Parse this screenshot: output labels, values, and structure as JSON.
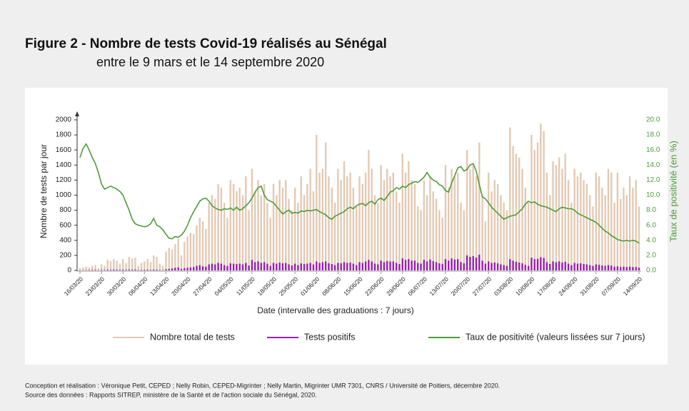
{
  "chart_data": {
    "type": "bar",
    "title": "Figure 2 - Nombre de tests Covid-19 réalisés au Sénégal",
    "subtitle": "entre le 9 mars et le 14 septembre 2020",
    "x_label": "Date (intervalle des graduations : 7 jours)",
    "y_label": "Nombre de tests par jour",
    "y2_label": "Taux de positivité (en %)",
    "notes": [
      "Conception et réalisation : Véronique Petit, CEPED ; Nelly Robin, CEPED-Migrinter ; Nelly Martin,  Migrinter UMR 7301, CNRS / Université de Poitiers, décembre 2020.",
      "Source des données : Rapports SITREP, ministère de la Santé et de l'action sociale du Sénégal, 2020."
    ],
    "ylim": [
      0,
      2000
    ],
    "yticks": [
      0,
      200,
      400,
      600,
      800,
      1000,
      1200,
      1400,
      1600,
      1800,
      2000
    ],
    "y2lim": [
      0,
      20
    ],
    "y2ticks": [
      {
        "value": 0,
        "label": "0.0"
      },
      {
        "value": 2,
        "label": "2.0"
      },
      {
        "value": 4,
        "label": "4.0"
      },
      {
        "value": 6,
        "label": "6.0"
      },
      {
        "value": 8,
        "label": "8.0"
      },
      {
        "value": 10,
        "label": "10.0"
      },
      {
        "value": 12,
        "label": "12.0"
      },
      {
        "value": 14,
        "label": "14.0"
      },
      {
        "value": 16,
        "label": "16.0"
      },
      {
        "value": 18,
        "label": "18.0"
      },
      {
        "value": 20,
        "label": "20.0"
      }
    ],
    "legend": "bottom",
    "categories": [
      "16/03/20",
      null,
      null,
      null,
      null,
      null,
      null,
      "23/03/20",
      null,
      null,
      null,
      null,
      null,
      null,
      "30/03/20",
      null,
      null,
      null,
      null,
      null,
      null,
      "06/04/20",
      null,
      null,
      null,
      null,
      null,
      null,
      "13/04/20",
      null,
      null,
      null,
      null,
      null,
      null,
      "20/04/20",
      null,
      null,
      null,
      null,
      null,
      null,
      "27/04/20",
      null,
      null,
      null,
      null,
      null,
      null,
      "04/05/20",
      null,
      null,
      null,
      null,
      null,
      null,
      "11/05/20",
      null,
      null,
      null,
      null,
      null,
      null,
      "18/05/20",
      null,
      null,
      null,
      null,
      null,
      null,
      "25/05/20",
      null,
      null,
      null,
      null,
      null,
      null,
      "01/06/20",
      null,
      null,
      null,
      null,
      null,
      null,
      "08/06/20",
      null,
      null,
      null,
      null,
      null,
      null,
      "15/06/20",
      null,
      null,
      null,
      null,
      null,
      null,
      "22/06/20",
      null,
      null,
      null,
      null,
      null,
      null,
      "29/06/20",
      null,
      null,
      null,
      null,
      null,
      null,
      "06/07/20",
      null,
      null,
      null,
      null,
      null,
      null,
      "13/07/20",
      null,
      null,
      null,
      null,
      null,
      null,
      "20/07/20",
      null,
      null,
      null,
      null,
      null,
      null,
      "27/07/20",
      null,
      null,
      null,
      null,
      null,
      null,
      "03/08/20",
      null,
      null,
      null,
      null,
      null,
      null,
      "10/08/20",
      null,
      null,
      null,
      null,
      null,
      null,
      "17/08/20",
      null,
      null,
      null,
      null,
      null,
      null,
      "24/08/20",
      null,
      null,
      null,
      null,
      null,
      null,
      "31/08/20",
      null,
      null,
      null,
      null,
      null,
      null,
      "07/09/20",
      null,
      null,
      null,
      null,
      null,
      null,
      "14/09/20"
    ],
    "series": [
      {
        "name": "Nombre total de tests",
        "type": "bar",
        "color": "#e3c9b3",
        "values": [
          30,
          40,
          50,
          40,
          60,
          70,
          30,
          80,
          60,
          140,
          120,
          150,
          130,
          90,
          150,
          100,
          180,
          160,
          170,
          60,
          100,
          120,
          150,
          110,
          200,
          180,
          90,
          60,
          250,
          300,
          280,
          350,
          420,
          200,
          380,
          450,
          500,
          480,
          600,
          700,
          650,
          550,
          900,
          1000,
          950,
          1150,
          1100,
          900,
          700,
          1200,
          1150,
          1050,
          1100,
          1000,
          1250,
          800,
          1350,
          1050,
          1200,
          1000,
          1150,
          900,
          700,
          1150,
          1000,
          1200,
          1100,
          1200,
          950,
          800,
          1100,
          900,
          1250,
          1000,
          1150,
          1350,
          1050,
          1800,
          1300,
          1350,
          1700,
          1250,
          1100,
          900,
          1350,
          1200,
          1450,
          1250,
          1300,
          1100,
          850,
          1250,
          1150,
          1300,
          1600,
          1350,
          1000,
          900,
          1400,
          1200,
          1350,
          1250,
          1300,
          1050,
          900,
          1550,
          1300,
          1450,
          1200,
          1150,
          850,
          800,
          1200,
          1000,
          1250,
          1050,
          950,
          800,
          700,
          1400,
          1100,
          1350,
          1250,
          1300,
          900,
          800,
          1600,
          1350,
          1400,
          1250,
          1700,
          1000,
          650,
          1300,
          1050,
          1200,
          1150,
          1000,
          900,
          800,
          1900,
          1650,
          1550,
          1500,
          1350,
          1100,
          900,
          1800,
          1600,
          1700,
          1950,
          1850,
          1300,
          1000,
          1450,
          1400,
          1500,
          1350,
          1550,
          1200,
          900,
          1350,
          1250,
          1300,
          1200,
          1150,
          1000,
          850,
          1300,
          1250,
          1100,
          1000,
          1350,
          1300,
          900,
          1300,
          950,
          1100,
          1000,
          1250,
          1100,
          1200,
          850
        ]
      },
      {
        "name": "Tests positifs",
        "type": "bar",
        "color": "#9a1fb0",
        "values": [
          3,
          4,
          5,
          5,
          6,
          8,
          3,
          8,
          6,
          10,
          9,
          12,
          10,
          8,
          10,
          8,
          12,
          10,
          12,
          5,
          8,
          8,
          10,
          7,
          12,
          10,
          6,
          5,
          15,
          20,
          25,
          35,
          40,
          20,
          30,
          35,
          40,
          45,
          60,
          70,
          55,
          50,
          80,
          90,
          80,
          100,
          90,
          70,
          60,
          95,
          90,
          85,
          90,
          80,
          100,
          65,
          140,
          110,
          120,
          100,
          110,
          90,
          60,
          100,
          90,
          105,
          95,
          100,
          80,
          65,
          90,
          70,
          95,
          85,
          90,
          100,
          80,
          120,
          100,
          110,
          120,
          95,
          85,
          70,
          100,
          95,
          110,
          100,
          105,
          90,
          70,
          110,
          100,
          120,
          140,
          120,
          90,
          80,
          130,
          110,
          125,
          120,
          120,
          100,
          85,
          160,
          140,
          150,
          130,
          130,
          100,
          90,
          140,
          120,
          145,
          125,
          110,
          95,
          85,
          150,
          130,
          160,
          145,
          150,
          110,
          95,
          200,
          180,
          190,
          170,
          210,
          130,
          90,
          120,
          100,
          105,
          95,
          80,
          70,
          60,
          150,
          130,
          115,
          105,
          95,
          75,
          60,
          170,
          150,
          155,
          175,
          165,
          110,
          85,
          120,
          110,
          120,
          105,
          115,
          90,
          70,
          100,
          90,
          95,
          85,
          80,
          70,
          60,
          80,
          75,
          65,
          60,
          70,
          65,
          50,
          55,
          45,
          50,
          45,
          50,
          45,
          45,
          35
        ]
      },
      {
        "name": "Taux de positivité (valeurs lissées sur 7 jours)",
        "type": "line",
        "axis": "y2",
        "color": "#4f9a3b",
        "values": [
          15.0,
          16.2,
          16.8,
          16.0,
          15.0,
          14.2,
          13.0,
          11.5,
          10.8,
          11.0,
          11.2,
          11.0,
          10.8,
          10.5,
          10.0,
          9.0,
          8.0,
          6.8,
          6.2,
          6.0,
          5.9,
          5.8,
          5.9,
          6.2,
          6.9,
          6.0,
          5.8,
          5.4,
          4.8,
          4.3,
          4.2,
          4.5,
          4.4,
          4.7,
          5.2,
          6.0,
          7.0,
          7.8,
          8.5,
          9.2,
          9.5,
          9.6,
          9.2,
          8.6,
          8.3,
          8.1,
          8.0,
          8.2,
          8.1,
          8.3,
          8.0,
          8.4,
          8.0,
          8.2,
          8.6,
          9.0,
          9.6,
          10.4,
          11.0,
          11.2,
          10.0,
          9.4,
          9.2,
          9.0,
          8.5,
          8.0,
          7.5,
          7.8,
          8.0,
          7.6,
          7.7,
          7.6,
          7.9,
          7.8,
          8.0,
          7.9,
          8.0,
          8.1,
          7.8,
          7.6,
          7.4,
          7.0,
          6.8,
          7.2,
          7.4,
          7.6,
          7.8,
          8.2,
          8.4,
          8.2,
          8.6,
          8.8,
          8.9,
          8.6,
          9.0,
          9.2,
          8.8,
          9.4,
          9.6,
          9.3,
          9.8,
          10.4,
          10.6,
          11.0,
          10.8,
          11.2,
          11.0,
          11.4,
          11.6,
          11.8,
          11.7,
          12.0,
          12.4,
          13.0,
          12.4,
          12.0,
          11.8,
          11.4,
          11.2,
          10.6,
          10.4,
          11.6,
          12.6,
          13.6,
          13.8,
          13.2,
          13.4,
          14.0,
          14.2,
          13.2,
          11.4,
          9.8,
          9.5,
          9.0,
          8.4,
          8.0,
          7.6,
          7.2,
          6.8,
          7.0,
          7.2,
          7.3,
          7.4,
          7.8,
          8.2,
          8.8,
          9.2,
          9.0,
          9.1,
          8.8,
          8.6,
          8.5,
          8.4,
          8.2,
          8.0,
          7.8,
          8.2,
          8.4,
          8.3,
          8.2,
          8.2,
          8.0,
          7.6,
          7.4,
          7.2,
          7.0,
          6.8,
          6.6,
          6.4,
          6.0,
          5.6,
          5.2,
          5.0,
          4.6,
          4.4,
          4.1,
          4.0,
          3.9,
          4.0,
          3.9,
          4.0,
          3.9,
          3.6
        ]
      }
    ]
  }
}
